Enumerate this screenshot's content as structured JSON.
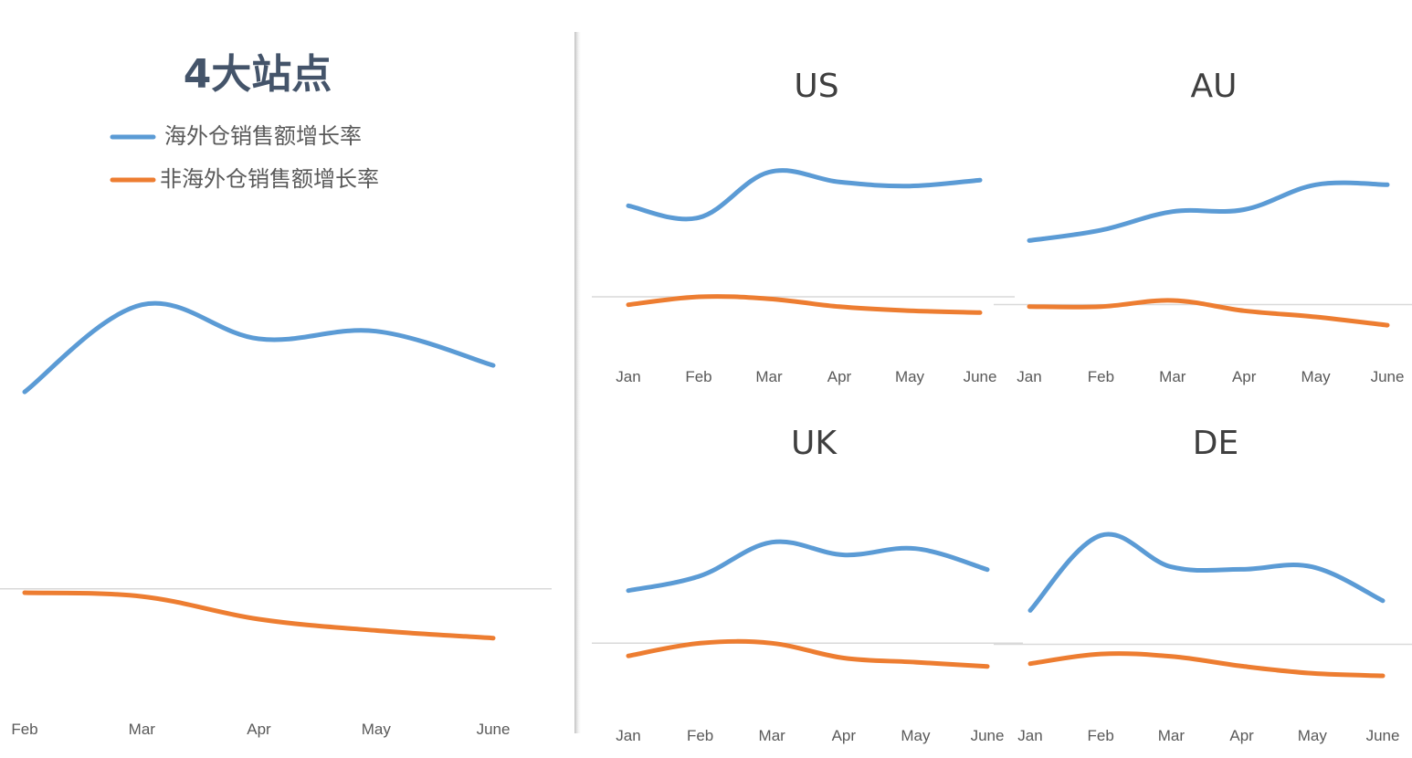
{
  "legend": [
    {
      "label": "海外仓销售额增长率",
      "color": "#5b9bd5"
    },
    {
      "label": "非海外仓销售额增长率",
      "color": "#ed7d31"
    }
  ],
  "chart_data": [
    {
      "type": "line",
      "title": "4大站点",
      "categories": [
        "Feb",
        "Mar",
        "Apr",
        "May",
        "June"
      ],
      "series": [
        {
          "name": "海外仓销售额增长率",
          "color": "#5b9bd5",
          "values": [
            0.52,
            0.75,
            0.66,
            0.68,
            0.59
          ]
        },
        {
          "name": "非海外仓销售额增长率",
          "color": "#ed7d31",
          "values": [
            -0.01,
            -0.02,
            -0.08,
            -0.11,
            -0.13
          ]
        }
      ],
      "baseline": 0,
      "ylim": [
        -0.35,
        1.0
      ],
      "legend_position": "top",
      "grid": false
    },
    {
      "type": "line",
      "title": "US",
      "categories": [
        "Jan",
        "Feb",
        "Mar",
        "Apr",
        "May",
        "June"
      ],
      "series": [
        {
          "name": "海外仓销售额增长率",
          "color": "#5b9bd5",
          "values": [
            0.46,
            0.4,
            0.63,
            0.58,
            0.56,
            0.59
          ]
        },
        {
          "name": "非海外仓销售额增长率",
          "color": "#ed7d31",
          "values": [
            -0.04,
            0.0,
            -0.01,
            -0.05,
            -0.07,
            -0.08
          ]
        }
      ],
      "baseline": 0,
      "ylim": [
        -0.3,
        0.9
      ],
      "grid": false
    },
    {
      "type": "line",
      "title": "AU",
      "categories": [
        "Jan",
        "Feb",
        "Mar",
        "Apr",
        "May",
        "June"
      ],
      "series": [
        {
          "name": "海外仓销售额增长率",
          "color": "#5b9bd5",
          "values": [
            0.31,
            0.36,
            0.45,
            0.46,
            0.58,
            0.58
          ]
        },
        {
          "name": "非海外仓销售额增长率",
          "color": "#ed7d31",
          "values": [
            -0.01,
            -0.01,
            0.02,
            -0.03,
            -0.06,
            -0.1
          ]
        }
      ],
      "baseline": 0,
      "ylim": [
        -0.25,
        0.9
      ],
      "grid": false
    },
    {
      "type": "line",
      "title": "UK",
      "categories": [
        "Jan",
        "Feb",
        "Mar",
        "Apr",
        "May",
        "June"
      ],
      "series": [
        {
          "name": "海外仓销售额增长率",
          "color": "#5b9bd5",
          "values": [
            0.25,
            0.32,
            0.48,
            0.42,
            0.45,
            0.35
          ]
        },
        {
          "name": "非海外仓销售额增长率",
          "color": "#ed7d31",
          "values": [
            -0.06,
            0.0,
            0.0,
            -0.07,
            -0.09,
            -0.11
          ]
        }
      ],
      "baseline": 0,
      "ylim": [
        -0.35,
        0.8
      ],
      "grid": false
    },
    {
      "type": "line",
      "title": "DE",
      "categories": [
        "Jan",
        "Feb",
        "Mar",
        "Apr",
        "May",
        "June"
      ],
      "series": [
        {
          "name": "海外仓销售额增长率",
          "color": "#5b9bd5",
          "values": [
            0.14,
            0.45,
            0.32,
            0.31,
            0.32,
            0.18
          ]
        },
        {
          "name": "非海外仓销售额增长率",
          "color": "#ed7d31",
          "values": [
            -0.08,
            -0.04,
            -0.05,
            -0.09,
            -0.12,
            -0.13
          ]
        }
      ],
      "baseline": 0,
      "ylim": [
        -0.3,
        0.7
      ],
      "grid": false
    }
  ]
}
